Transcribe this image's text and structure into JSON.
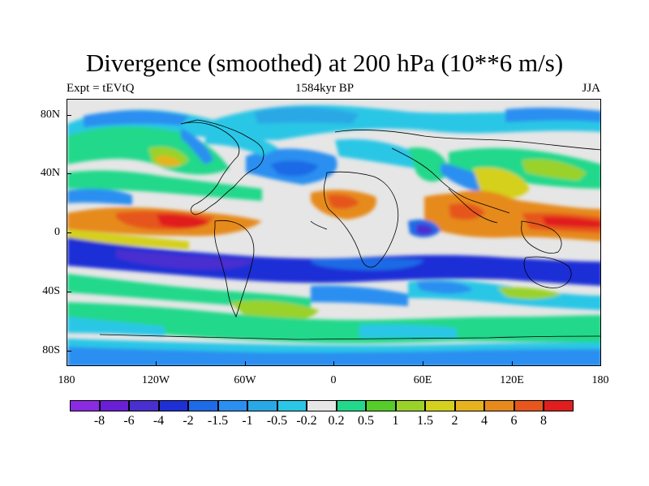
{
  "title": "Divergence (smoothed) at 200 hPa (10**6 m/s)",
  "subtitle_left": "Expt = tEVtQ",
  "subtitle_center": "1584kyr BP",
  "subtitle_right": "JJA",
  "lat_ticks": [
    "80N",
    "40N",
    "0",
    "40S",
    "80S"
  ],
  "lon_ticks": [
    "180",
    "120W",
    "60W",
    "0",
    "60E",
    "120E",
    "180"
  ],
  "colorbar": {
    "colors": [
      "#8a2be2",
      "#6a1fd6",
      "#4a2fd0",
      "#1f2fd6",
      "#1f6ae6",
      "#2a8ff0",
      "#29a8e6",
      "#2ac6e6",
      "#e6e6e6",
      "#22d88a",
      "#55cc2a",
      "#9ad22a",
      "#d4d01e",
      "#e6b31e",
      "#e68a1e",
      "#e6561e",
      "#e01e1e"
    ],
    "labels": [
      "-8",
      "-6",
      "-4",
      "-2",
      "-1.5",
      "-1",
      "-0.5",
      "-0.2",
      "0.2",
      "0.5",
      "1",
      "1.5",
      "2",
      "4",
      "6",
      "8"
    ]
  }
}
